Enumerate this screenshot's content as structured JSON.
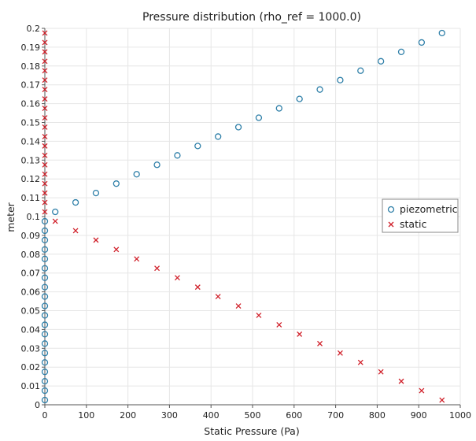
{
  "chart_data": {
    "type": "scatter",
    "title": "Pressure distribution (rho_ref = 1000.0)",
    "xlabel": "Static Pressure (Pa)",
    "ylabel": "meter",
    "xlim": [
      0,
      1000
    ],
    "ylim": [
      0,
      0.2
    ],
    "xticks": [
      "0",
      "100",
      "200",
      "300",
      "400",
      "500",
      "600",
      "700",
      "800",
      "900",
      "1000"
    ],
    "yticks": [
      "0",
      "0.01",
      "0.02",
      "0.03",
      "0.04",
      "0.05",
      "0.06",
      "0.07",
      "0.08",
      "0.09",
      "0.1",
      "0.11",
      "0.12",
      "0.13",
      "0.14",
      "0.15",
      "0.16",
      "0.17",
      "0.18",
      "0.19",
      "0.2"
    ],
    "grid": true,
    "legend_position": "right",
    "series": [
      {
        "name": "piezometric",
        "marker": "circle",
        "color": "#2e7fa8",
        "x": [
          0,
          0,
          0,
          0,
          0,
          0,
          0,
          0,
          0,
          0,
          0,
          0,
          0,
          0,
          0,
          0,
          0,
          0,
          0,
          0,
          25,
          74,
          123,
          172,
          221,
          270,
          319,
          368,
          417,
          466,
          515,
          564,
          613,
          662,
          711,
          760,
          809,
          858,
          907,
          956
        ],
        "y": [
          0.0025,
          0.0075,
          0.0125,
          0.0175,
          0.0225,
          0.0275,
          0.0325,
          0.0375,
          0.0425,
          0.0475,
          0.0525,
          0.0575,
          0.0625,
          0.0675,
          0.0725,
          0.0775,
          0.0825,
          0.0875,
          0.0925,
          0.0975,
          0.1025,
          0.1075,
          0.1125,
          0.1175,
          0.1225,
          0.1275,
          0.1325,
          0.1375,
          0.1425,
          0.1475,
          0.1525,
          0.1575,
          0.1625,
          0.1675,
          0.1725,
          0.1775,
          0.1825,
          0.1875,
          0.1925,
          0.1975
        ]
      },
      {
        "name": "static",
        "marker": "x",
        "color": "#d0202a",
        "x": [
          956,
          907,
          858,
          809,
          760,
          711,
          662,
          613,
          564,
          515,
          466,
          417,
          368,
          319,
          270,
          221,
          172,
          123,
          74,
          25,
          0,
          0,
          0,
          0,
          0,
          0,
          0,
          0,
          0,
          0,
          0,
          0,
          0,
          0,
          0,
          0,
          0,
          0,
          0,
          0
        ],
        "y": [
          0.0025,
          0.0075,
          0.0125,
          0.0175,
          0.0225,
          0.0275,
          0.0325,
          0.0375,
          0.0425,
          0.0475,
          0.0525,
          0.0575,
          0.0625,
          0.0675,
          0.0725,
          0.0775,
          0.0825,
          0.0875,
          0.0925,
          0.0975,
          0.1025,
          0.1075,
          0.1125,
          0.1175,
          0.1225,
          0.1275,
          0.1325,
          0.1375,
          0.1425,
          0.1475,
          0.1525,
          0.1575,
          0.1625,
          0.1675,
          0.1725,
          0.1775,
          0.1825,
          0.1875,
          0.1925,
          0.1975
        ]
      }
    ]
  },
  "colors": {
    "grid": "#e6e6e6",
    "axis": "#555555",
    "legend_border": "#888888"
  }
}
